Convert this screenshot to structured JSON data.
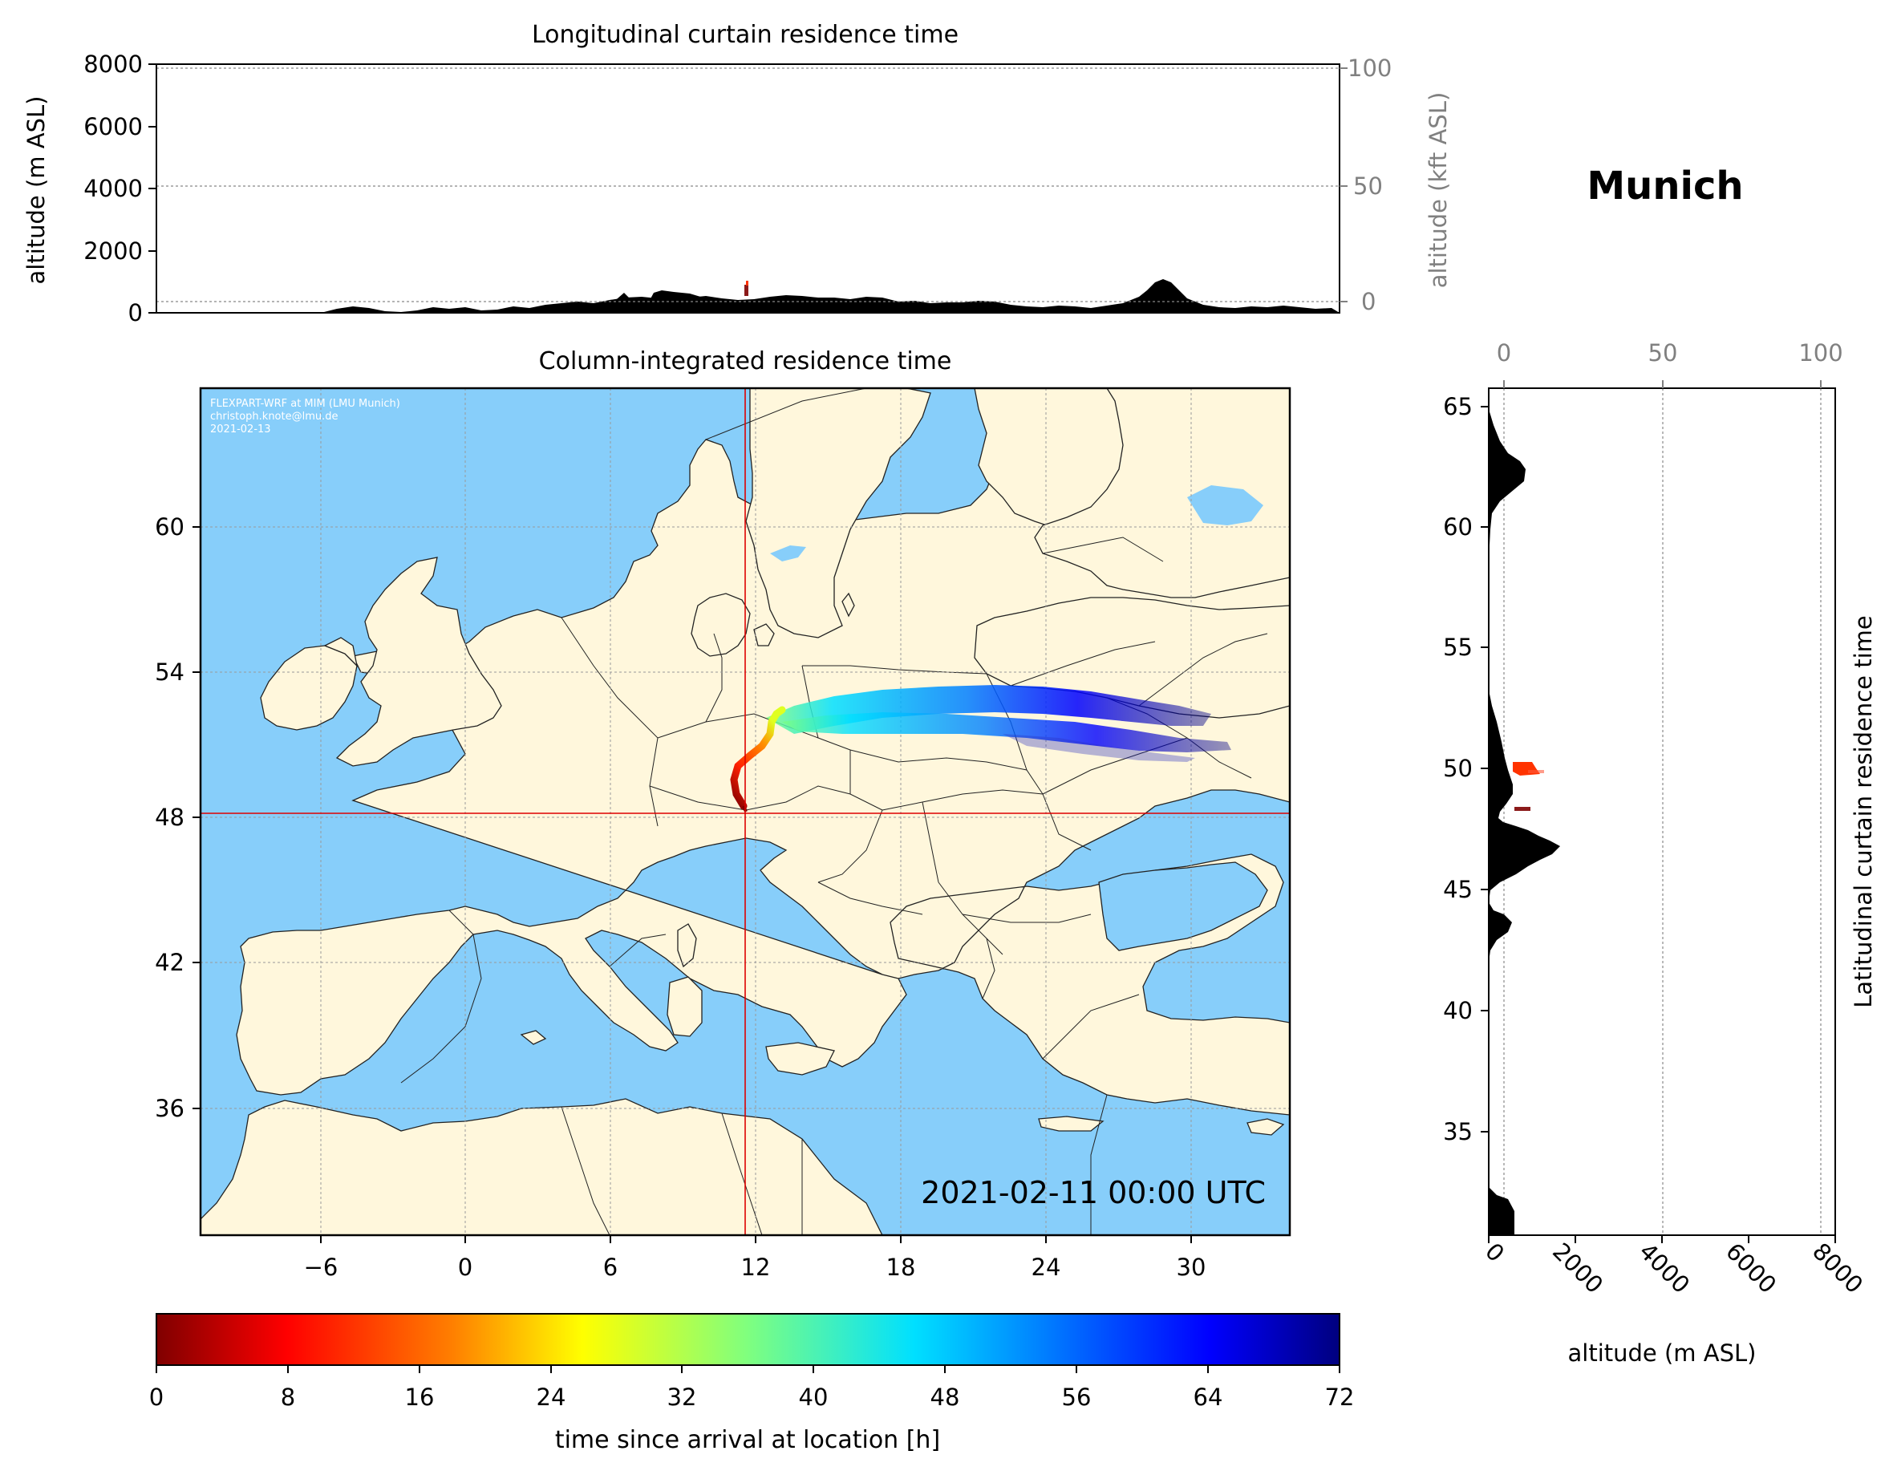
{
  "place_title": "Munich",
  "top_panel": {
    "title": "Longitudinal curtain residence time",
    "ylabel_left": "altitude (m ASL)",
    "ylabel_right": "altitude (kft ASL)",
    "left_ticks": [
      "0",
      "2000",
      "4000",
      "6000",
      "8000"
    ],
    "right_ticks": [
      "0",
      "50",
      "100"
    ]
  },
  "map_panel": {
    "title": "Column-integrated residence time",
    "credit_lines": [
      "FLEXPART-WRF at MIM (LMU Munich)",
      "christoph.knote@lmu.de",
      "2021-02-13"
    ],
    "timestamp": "2021-02-11 00:00 UTC",
    "lon_ticks": [
      "−6",
      "0",
      "6",
      "12",
      "18",
      "24",
      "30"
    ],
    "lat_ticks": [
      "36",
      "42",
      "48",
      "54",
      "60"
    ],
    "crosshair": {
      "lon": 11.6,
      "lat": 48.1
    }
  },
  "side_panel": {
    "ylabel": "Latitudinal curtain residence time",
    "xlabel": "altitude (m ASL)",
    "lat_ticks": [
      "35",
      "40",
      "45",
      "50",
      "55",
      "60",
      "65"
    ],
    "bottom_ticks": [
      "0",
      "2000",
      "4000",
      "6000",
      "8000"
    ],
    "top_ticks": [
      "0",
      "50",
      "100"
    ]
  },
  "colorbar": {
    "label": "time since arrival at location [h]",
    "ticks": [
      "0",
      "8",
      "16",
      "24",
      "32",
      "40",
      "48",
      "56",
      "64",
      "72"
    ],
    "colormap": "jet_r",
    "range": [
      0,
      72
    ]
  },
  "colors": {
    "ocean": "#87CEFA",
    "land": "#FFF7DC",
    "crosshair": "#dd0000",
    "terrain": "#000000"
  }
}
